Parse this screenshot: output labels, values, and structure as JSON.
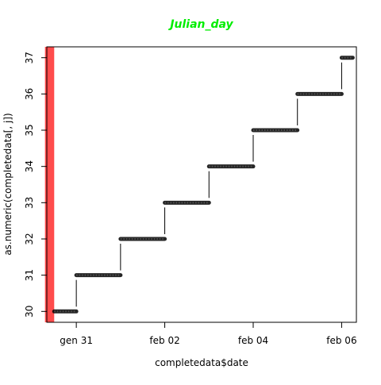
{
  "chart_data": {
    "type": "line",
    "title": "Julian_day",
    "title_color": "#00ee00",
    "xlabel": "completedata$date",
    "ylabel": "as.numeric(completedata[, j])",
    "x_ticks": [
      "gen 31",
      "feb 02",
      "feb 04",
      "feb 06"
    ],
    "y_ticks": [
      30,
      31,
      32,
      33,
      34,
      35,
      36,
      37
    ],
    "xlim": [
      "2023-01-30T08:00",
      "2023-02-06T08:00"
    ],
    "ylim": [
      29.7,
      37.3
    ],
    "series": [
      {
        "color": "#000000",
        "style": "dense points with connecting line",
        "steps": [
          {
            "x_start": "2023-01-30T12:00",
            "x_end": "2023-01-31T00:00",
            "y": 30
          },
          {
            "x_start": "2023-01-31T00:00",
            "x_end": "2023-02-01T00:00",
            "y": 31
          },
          {
            "x_start": "2023-02-01T00:00",
            "x_end": "2023-02-02T00:00",
            "y": 32
          },
          {
            "x_start": "2023-02-02T00:00",
            "x_end": "2023-02-03T00:00",
            "y": 33
          },
          {
            "x_start": "2023-02-03T00:00",
            "x_end": "2023-02-04T00:00",
            "y": 34
          },
          {
            "x_start": "2023-02-04T00:00",
            "x_end": "2023-02-05T00:00",
            "y": 35
          },
          {
            "x_start": "2023-02-05T00:00",
            "x_end": "2023-02-06T00:00",
            "y": 36
          },
          {
            "x_start": "2023-02-06T00:00",
            "x_end": "2023-02-06T06:00",
            "y": 37
          }
        ]
      }
    ],
    "highlight_band": {
      "x_start": "2023-01-30T07:00",
      "x_end": "2023-01-30T12:00",
      "color": "#ff0000",
      "opacity": 0.7
    },
    "grid": false,
    "legend": "none"
  }
}
